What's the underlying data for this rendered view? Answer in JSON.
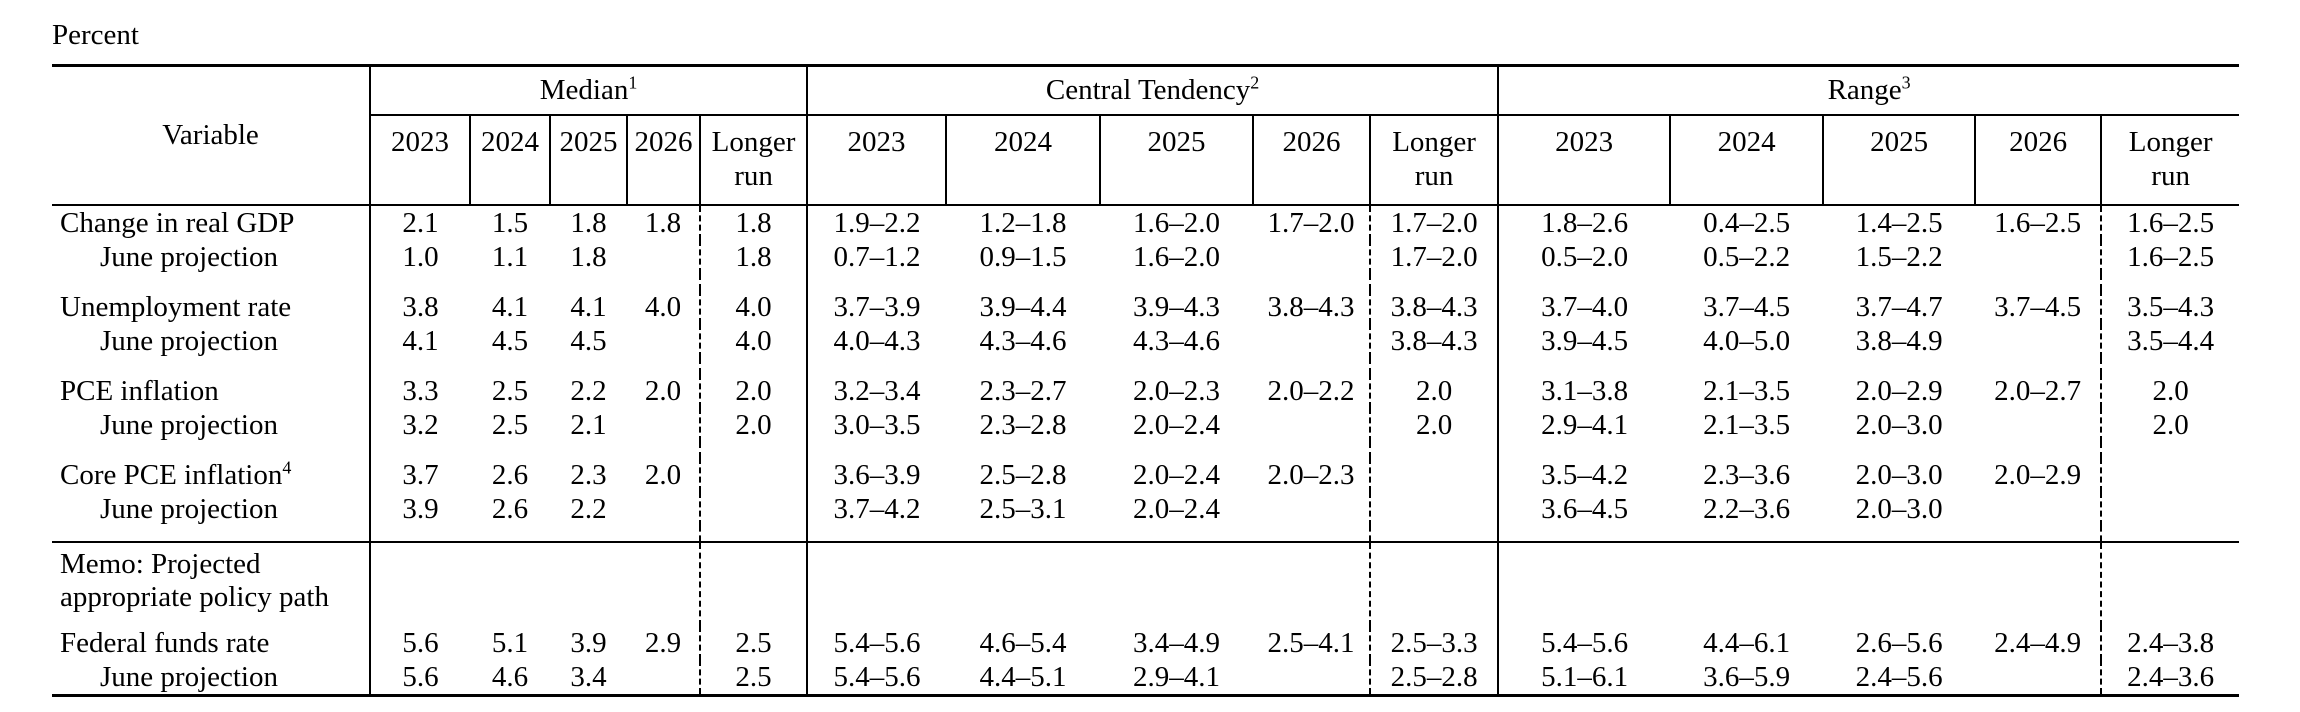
{
  "title": "Percent",
  "table": {
    "variable_header": "Variable",
    "groups": [
      {
        "label": "Median",
        "sup": "1"
      },
      {
        "label": "Central Tendency",
        "sup": "2"
      },
      {
        "label": "Range",
        "sup": "3"
      }
    ],
    "year_headers": [
      "2023",
      "2024",
      "2025",
      "2026",
      "Longer\nrun"
    ],
    "rows": [
      {
        "type": "data",
        "label": "Change in real GDP",
        "median": [
          "2.1",
          "1.5",
          "1.8",
          "1.8",
          "1.8"
        ],
        "central": [
          "1.9–2.2",
          "1.2–1.8",
          "1.6–2.0",
          "1.7–2.0",
          "1.7–2.0"
        ],
        "range": [
          "1.8–2.6",
          "0.4–2.5",
          "1.4–2.5",
          "1.6–2.5",
          "1.6–2.5"
        ]
      },
      {
        "type": "data",
        "label": "June projection",
        "indent": true,
        "median": [
          "1.0",
          "1.1",
          "1.8",
          "",
          "1.8"
        ],
        "central": [
          "0.7–1.2",
          "0.9–1.5",
          "1.6–2.0",
          "",
          "1.7–2.0"
        ],
        "range": [
          "0.5–2.0",
          "0.5–2.2",
          "1.5–2.2",
          "",
          "1.6–2.5"
        ]
      },
      {
        "type": "spacer"
      },
      {
        "type": "data",
        "label": "Unemployment rate",
        "median": [
          "3.8",
          "4.1",
          "4.1",
          "4.0",
          "4.0"
        ],
        "central": [
          "3.7–3.9",
          "3.9–4.4",
          "3.9–4.3",
          "3.8–4.3",
          "3.8–4.3"
        ],
        "range": [
          "3.7–4.0",
          "3.7–4.5",
          "3.7–4.7",
          "3.7–4.5",
          "3.5–4.3"
        ]
      },
      {
        "type": "data",
        "label": "June projection",
        "indent": true,
        "median": [
          "4.1",
          "4.5",
          "4.5",
          "",
          "4.0"
        ],
        "central": [
          "4.0–4.3",
          "4.3–4.6",
          "4.3–4.6",
          "",
          "3.8–4.3"
        ],
        "range": [
          "3.9–4.5",
          "4.0–5.0",
          "3.8–4.9",
          "",
          "3.5–4.4"
        ]
      },
      {
        "type": "spacer"
      },
      {
        "type": "data",
        "label": "PCE inflation",
        "median": [
          "3.3",
          "2.5",
          "2.2",
          "2.0",
          "2.0"
        ],
        "central": [
          "3.2–3.4",
          "2.3–2.7",
          "2.0–2.3",
          "2.0–2.2",
          "2.0"
        ],
        "range": [
          "3.1–3.8",
          "2.1–3.5",
          "2.0–2.9",
          "2.0–2.7",
          "2.0"
        ]
      },
      {
        "type": "data",
        "label": "June projection",
        "indent": true,
        "median": [
          "3.2",
          "2.5",
          "2.1",
          "",
          "2.0"
        ],
        "central": [
          "3.0–3.5",
          "2.3–2.8",
          "2.0–2.4",
          "",
          "2.0"
        ],
        "range": [
          "2.9–4.1",
          "2.1–3.5",
          "2.0–3.0",
          "",
          "2.0"
        ]
      },
      {
        "type": "spacer"
      },
      {
        "type": "data",
        "label": "Core PCE inflation",
        "sup": "4",
        "median": [
          "3.7",
          "2.6",
          "2.3",
          "2.0",
          ""
        ],
        "central": [
          "3.6–3.9",
          "2.5–2.8",
          "2.0–2.4",
          "2.0–2.3",
          ""
        ],
        "range": [
          "3.5–4.2",
          "2.3–3.6",
          "2.0–3.0",
          "2.0–2.9",
          ""
        ]
      },
      {
        "type": "data",
        "label": "June projection",
        "indent": true,
        "median": [
          "3.9",
          "2.6",
          "2.2",
          "",
          ""
        ],
        "central": [
          "3.7–4.2",
          "2.5–3.1",
          "2.0–2.4",
          "",
          ""
        ],
        "range": [
          "3.6–4.5",
          "2.2–3.6",
          "2.0–3.0",
          "",
          ""
        ]
      },
      {
        "type": "spacer"
      },
      {
        "type": "memo",
        "label_lines": [
          "Memo: Projected",
          "appropriate policy path"
        ]
      },
      {
        "type": "data",
        "label": "Federal funds rate",
        "median": [
          "5.6",
          "5.1",
          "3.9",
          "2.9",
          "2.5"
        ],
        "central": [
          "5.4–5.6",
          "4.6–5.4",
          "3.4–4.9",
          "2.5–4.1",
          "2.5–3.3"
        ],
        "range": [
          "5.4–5.6",
          "4.4–6.1",
          "2.6–5.6",
          "2.4–4.9",
          "2.4–3.8"
        ]
      },
      {
        "type": "data",
        "label": "June projection",
        "indent": true,
        "median": [
          "5.6",
          "4.6",
          "3.4",
          "",
          "2.5"
        ],
        "central": [
          "5.4–5.6",
          "4.4–5.1",
          "2.9–4.1",
          "",
          "2.5–2.8"
        ],
        "range": [
          "5.1–6.1",
          "3.6–5.9",
          "2.4–5.6",
          "",
          "2.4–3.6"
        ]
      }
    ]
  }
}
